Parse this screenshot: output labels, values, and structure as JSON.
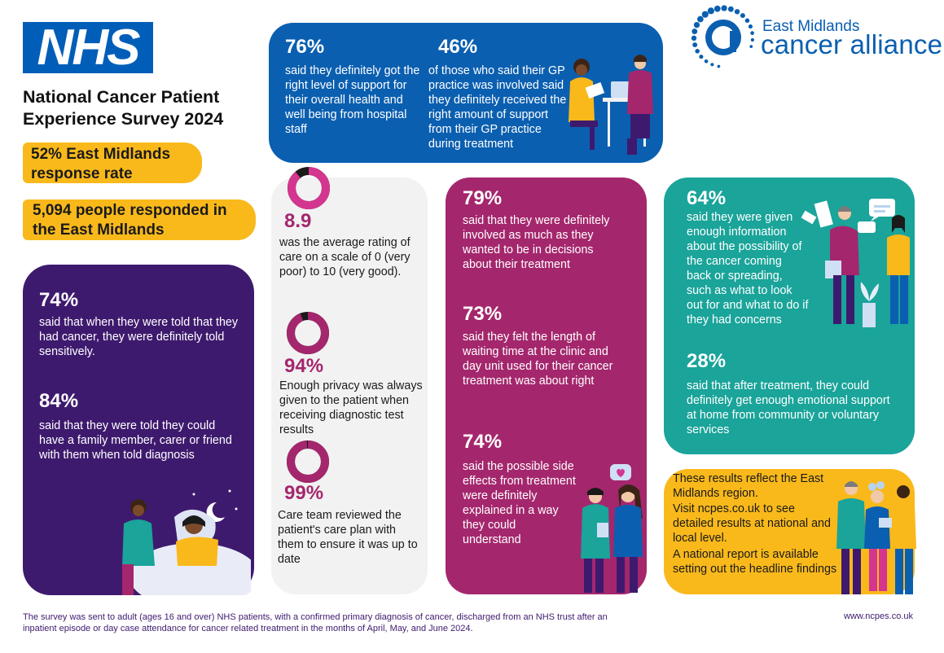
{
  "header": {
    "logo": "NHS",
    "title": "National Cancer Patient Experience Survey 2024",
    "response_rate": "52% East Midlands response rate",
    "responded": "5,094 people responded in the East Midlands"
  },
  "brand": {
    "line1": "East Midlands",
    "line2": "cancer alliance",
    "color": "#0b5fb0"
  },
  "colors": {
    "nhs_blue": "#005eb8",
    "dark_purple": "#3e1a6e",
    "magenta": "#a4276d",
    "teal": "#1aa49a",
    "yellow": "#f9b91b",
    "light_grey": "#f2f2f2"
  },
  "blue_card": {
    "stat1": {
      "value": "76%",
      "text": "said they definitely got the right level of support for their overall health and well being from hospital staff"
    },
    "stat2": {
      "value": "46%",
      "text": "of those who said their GP practice was involved said they definitely received the right amount of support from their GP practice during treatment"
    }
  },
  "purple_card": {
    "stat1": {
      "value": "74%",
      "text": "said that when they were told that they had cancer, they were definitely told sensitively."
    },
    "stat2": {
      "value": "84%",
      "text": "said that they were told they could have a family member, carer or friend with them when told diagnosis"
    }
  },
  "grey_card": {
    "stat1": {
      "value": "8.9",
      "text": "was the average rating of care on a scale of 0 (very poor) to 10 (very good).",
      "fraction": 0.89
    },
    "stat2": {
      "value": "94%",
      "text": "Enough privacy was always given to the patient when receiving diagnostic test results",
      "fraction": 0.94
    },
    "stat3": {
      "value": "99%",
      "text": "Care team reviewed the patient's care plan with them to ensure it was up to date",
      "fraction": 0.99
    }
  },
  "magenta_card": {
    "stat1": {
      "value": "79%",
      "text": "said that they were definitely involved as much as they wanted to be in decisions about their treatment"
    },
    "stat2": {
      "value": "73%",
      "text": "said they felt the length of waiting time at the clinic and day unit used for their cancer treatment was about right"
    },
    "stat3": {
      "value": "74%",
      "text": "said the possible side effects from treatment were definitely explained in a way they could understand"
    }
  },
  "teal_card": {
    "stat1": {
      "value": "64%",
      "text": "said they were given enough information about the possibility of the cancer coming back or spreading, such as what to look out for and what to do if they had concerns"
    },
    "stat2": {
      "value": "28%",
      "text": "said that after treatment, they could definitely get enough emotional support at home from community or voluntary services"
    }
  },
  "yellow_card": {
    "line1": "These results reflect the East Midlands region.",
    "line2": "Visit ncpes.co.uk to see detailed results at national and local level.",
    "line3": "A national report is available setting out the headline findings"
  },
  "footer": {
    "note": "The survey was sent to adult (ages 16 and over) NHS patients, with a confirmed primary diagnosis of cancer, discharged from an NHS trust after an inpatient episode or day case attendance for cancer related treatment in the months of April, May, and June 2024.",
    "url": "www.ncpes.co.uk"
  }
}
